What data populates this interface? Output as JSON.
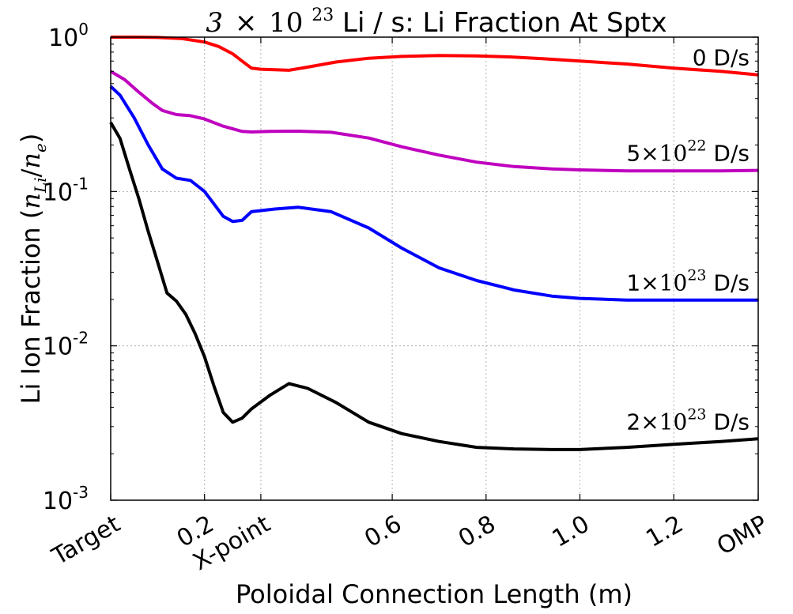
{
  "chart_data": {
    "type": "line",
    "title": {
      "prefix": "3",
      "times": "×",
      "base": "10",
      "exp": "23",
      "rest": " Li / s: Li Fraction At Sptx"
    },
    "xlabel": "Poloidal Connection Length (m)",
    "ylabel": {
      "text": "Li Ion Fraction (",
      "n1": "n",
      "sub1": "Li",
      "slash": "/",
      "n2": "n",
      "sub2": "e",
      "close": ")"
    },
    "xlim": [
      0.0,
      1.38
    ],
    "ylim": [
      0.001,
      1.0
    ],
    "yscale": "log",
    "grid": true,
    "x_ticks": [
      {
        "value": 0.0,
        "label": "Target"
      },
      {
        "value": 0.2,
        "label": "0.2"
      },
      {
        "value": 0.32,
        "label": "X-point"
      },
      {
        "value": 0.6,
        "label": "0.6"
      },
      {
        "value": 0.8,
        "label": "0.8"
      },
      {
        "value": 1.0,
        "label": "1.0"
      },
      {
        "value": 1.2,
        "label": "1.2"
      },
      {
        "value": 1.38,
        "label": "OMP"
      }
    ],
    "y_ticks": [
      {
        "value": 1.0,
        "base": "10",
        "exp": "0"
      },
      {
        "value": 0.1,
        "base": "10",
        "exp": "-1"
      },
      {
        "value": 0.01,
        "base": "10",
        "exp": "-2"
      },
      {
        "value": 0.001,
        "base": "10",
        "exp": "-3"
      }
    ],
    "series": [
      {
        "color": "#ff0000",
        "label": {
          "mant": "0",
          "times": "",
          "base": "",
          "exp": "",
          "unit": " D/s"
        },
        "x": [
          0.0,
          0.05,
          0.1,
          0.15,
          0.2,
          0.23,
          0.26,
          0.28,
          0.3,
          0.32,
          0.38,
          0.42,
          0.48,
          0.55,
          0.62,
          0.7,
          0.78,
          0.85,
          0.92,
          1.0,
          1.1,
          1.2,
          1.3,
          1.38
        ],
        "y": [
          1.0,
          1.0,
          0.995,
          0.98,
          0.93,
          0.87,
          0.78,
          0.7,
          0.63,
          0.62,
          0.61,
          0.64,
          0.69,
          0.73,
          0.75,
          0.76,
          0.755,
          0.745,
          0.725,
          0.7,
          0.67,
          0.63,
          0.6,
          0.57
        ]
      },
      {
        "color": "#bf00bf",
        "label": {
          "mant": "5",
          "times": "×",
          "base": "10",
          "exp": "22",
          "unit": " D/s"
        },
        "x": [
          0.0,
          0.03,
          0.06,
          0.09,
          0.11,
          0.14,
          0.17,
          0.2,
          0.24,
          0.28,
          0.3,
          0.34,
          0.4,
          0.47,
          0.55,
          0.62,
          0.7,
          0.78,
          0.86,
          0.94,
          1.0,
          1.1,
          1.2,
          1.3,
          1.38
        ],
        "y": [
          0.6,
          0.53,
          0.44,
          0.37,
          0.335,
          0.315,
          0.31,
          0.295,
          0.265,
          0.245,
          0.243,
          0.245,
          0.246,
          0.242,
          0.222,
          0.195,
          0.172,
          0.155,
          0.145,
          0.14,
          0.138,
          0.136,
          0.136,
          0.136,
          0.137
        ]
      },
      {
        "color": "#0000ff",
        "label": {
          "mant": "1",
          "times": "×",
          "base": "10",
          "exp": "23",
          "unit": " D/s"
        },
        "x": [
          0.0,
          0.02,
          0.05,
          0.08,
          0.11,
          0.14,
          0.17,
          0.2,
          0.22,
          0.24,
          0.26,
          0.28,
          0.3,
          0.35,
          0.4,
          0.47,
          0.55,
          0.62,
          0.7,
          0.78,
          0.86,
          0.94,
          1.0,
          1.1,
          1.2,
          1.3,
          1.38
        ],
        "y": [
          0.48,
          0.42,
          0.3,
          0.2,
          0.14,
          0.122,
          0.118,
          0.1,
          0.083,
          0.069,
          0.064,
          0.065,
          0.074,
          0.077,
          0.079,
          0.074,
          0.058,
          0.043,
          0.032,
          0.0265,
          0.023,
          0.021,
          0.0203,
          0.0198,
          0.0198,
          0.0198,
          0.0198
        ]
      },
      {
        "color": "#000000",
        "label": {
          "mant": "2",
          "times": "×",
          "base": "10",
          "exp": "23",
          "unit": " D/s"
        },
        "x": [
          0.0,
          0.02,
          0.04,
          0.06,
          0.08,
          0.1,
          0.12,
          0.14,
          0.16,
          0.18,
          0.2,
          0.22,
          0.24,
          0.26,
          0.28,
          0.3,
          0.34,
          0.38,
          0.42,
          0.48,
          0.55,
          0.62,
          0.7,
          0.78,
          0.86,
          0.94,
          1.0,
          1.1,
          1.2,
          1.3,
          1.38
        ],
        "y": [
          0.28,
          0.22,
          0.14,
          0.09,
          0.055,
          0.035,
          0.022,
          0.0195,
          0.016,
          0.012,
          0.0085,
          0.0055,
          0.0037,
          0.0032,
          0.0034,
          0.0039,
          0.0048,
          0.0057,
          0.0053,
          0.0043,
          0.0032,
          0.0027,
          0.0024,
          0.0022,
          0.00215,
          0.00213,
          0.00213,
          0.0022,
          0.0023,
          0.0024,
          0.0025
        ]
      }
    ]
  }
}
